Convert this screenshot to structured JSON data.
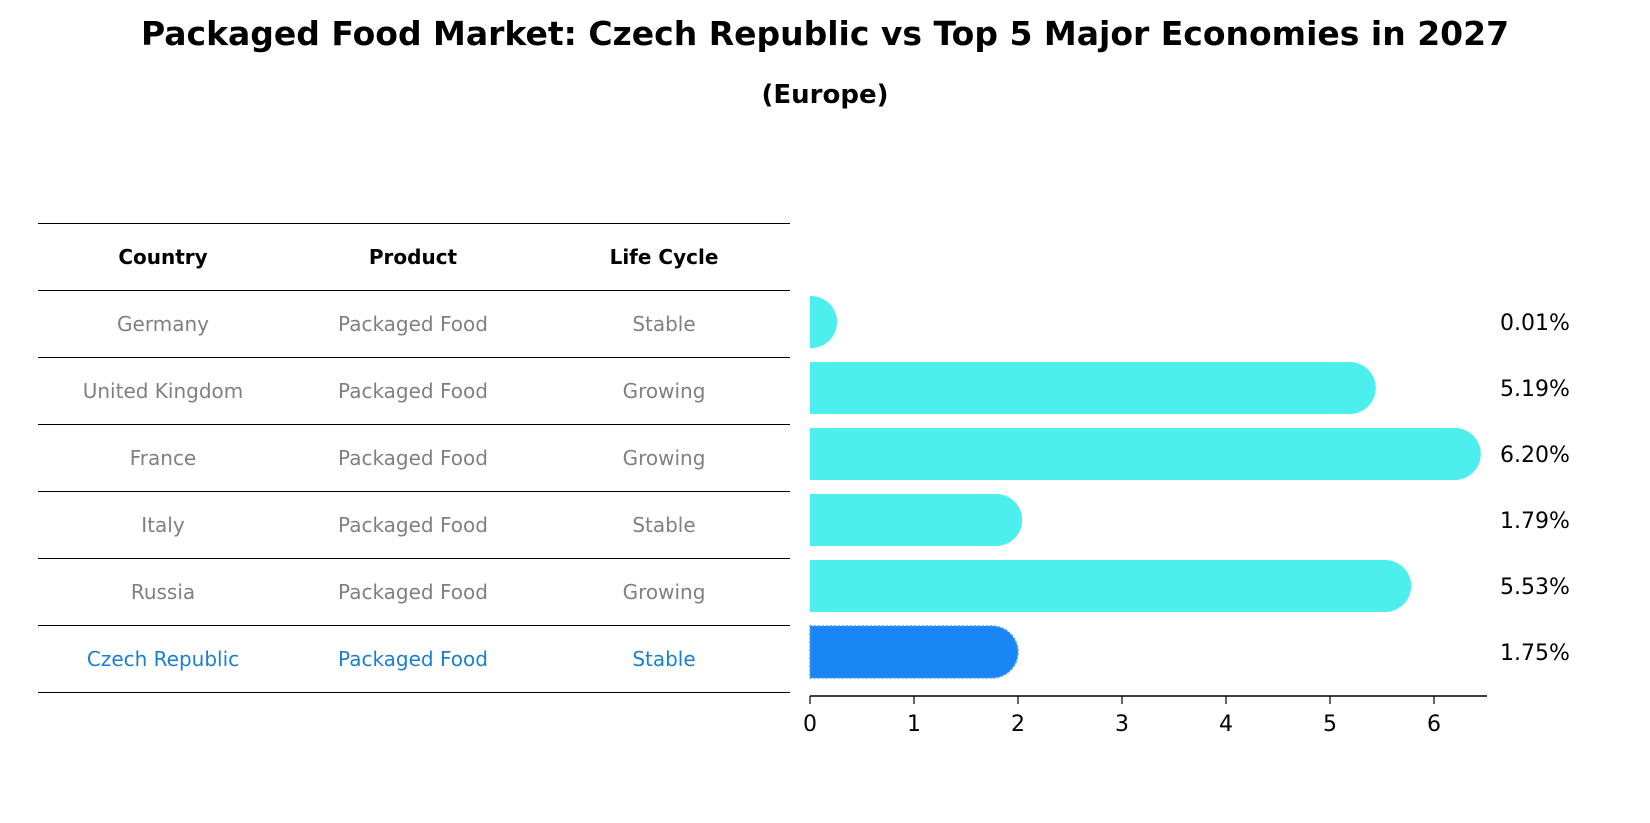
{
  "title": "Packaged Food Market: Czech Republic vs Top 5 Major Economies in 2027",
  "subtitle": "(Europe)",
  "table": {
    "headers": [
      "Country",
      "Product",
      "Life Cycle"
    ],
    "rows": [
      {
        "country": "Germany",
        "product": "Packaged Food",
        "life_cycle": "Stable"
      },
      {
        "country": "United Kingdom",
        "product": "Packaged Food",
        "life_cycle": "Growing"
      },
      {
        "country": "France",
        "product": "Packaged Food",
        "life_cycle": "Growing"
      },
      {
        "country": "Italy",
        "product": "Packaged Food",
        "life_cycle": "Stable"
      },
      {
        "country": "Russia",
        "product": "Packaged Food",
        "life_cycle": "Growing"
      },
      {
        "country": "Czech Republic",
        "product": "Packaged Food",
        "life_cycle": "Stable"
      }
    ]
  },
  "chart_data": {
    "type": "bar",
    "orientation": "horizontal",
    "title": "Packaged Food Market: Czech Republic vs Top 5 Major Economies in 2027",
    "subtitle": "(Europe)",
    "categories": [
      "Germany",
      "United Kingdom",
      "France",
      "Italy",
      "Russia",
      "Czech Republic"
    ],
    "values": [
      0.01,
      5.19,
      6.2,
      1.79,
      5.53,
      1.75
    ],
    "value_labels": [
      "0.01%",
      "5.19%",
      "6.20%",
      "1.79%",
      "5.53%",
      "1.75%"
    ],
    "xlim": [
      0,
      6.5
    ],
    "xticks": [
      0,
      1,
      2,
      3,
      4,
      5,
      6
    ],
    "xlabel": "",
    "ylabel": "",
    "grid": false,
    "highlight": "Czech Republic",
    "colors": {
      "default": "#4ceeee",
      "highlight": "#1a86f5"
    }
  }
}
